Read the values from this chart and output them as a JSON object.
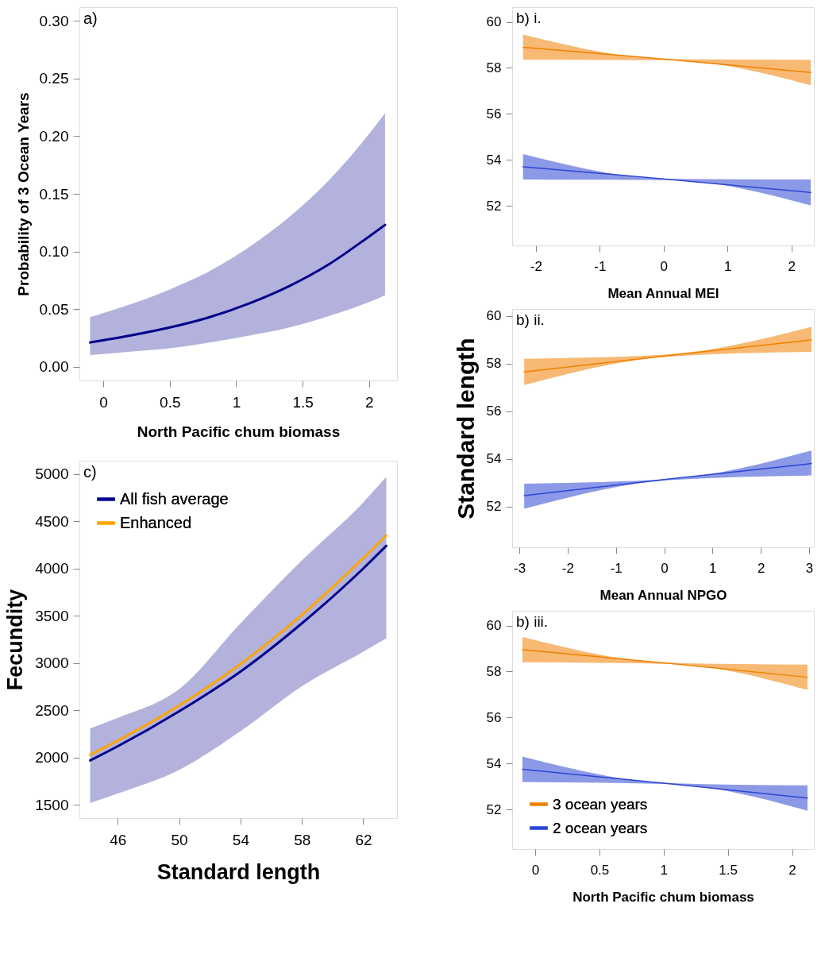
{
  "chart_data": [
    {
      "type": "line",
      "title": "a)",
      "xlabel": "North Pacific chum biomass",
      "ylabel": "Probability of 3 Ocean Years",
      "xlim": [
        -0.18,
        2.21
      ],
      "ylim": [
        -0.012,
        0.312
      ],
      "xticks": [
        0,
        0.5,
        1,
        1.5,
        2
      ],
      "yticks": [
        {
          "value": 0,
          "label": "0.00"
        },
        {
          "value": 0.05,
          "label": "0.05"
        },
        {
          "value": 0.1,
          "label": "0.10"
        },
        {
          "value": 0.15,
          "label": "0.15"
        },
        {
          "value": 0.2,
          "label": "0.20"
        },
        {
          "value": 0.25,
          "label": "0.25"
        },
        {
          "value": 0.3,
          "label": "0.30"
        }
      ],
      "grid": false,
      "legend": false,
      "series": [
        {
          "color": "#00008b",
          "x": [
            -0.1,
            0.2,
            0.5,
            0.8,
            1.1,
            1.4,
            1.7,
            2.0,
            2.12
          ],
          "values": [
            0.021,
            0.027,
            0.034,
            0.043,
            0.055,
            0.07,
            0.089,
            0.113,
            0.123
          ],
          "lower": [
            0.01,
            0.013,
            0.016,
            0.021,
            0.027,
            0.034,
            0.044,
            0.056,
            0.062
          ],
          "upper": [
            0.043,
            0.054,
            0.067,
            0.083,
            0.104,
            0.13,
            0.162,
            0.202,
            0.22
          ]
        }
      ]
    },
    {
      "type": "line",
      "title": "c)",
      "xlabel": "Standard length",
      "ylabel": "Fecundity",
      "xlim": [
        43.5,
        64.2
      ],
      "ylim": [
        1360,
        5140
      ],
      "xticks": [
        46,
        50,
        54,
        58,
        62
      ],
      "yticks": [
        1500,
        2000,
        2500,
        3000,
        3500,
        4000,
        4500,
        5000
      ],
      "grid": false,
      "legend": "top left",
      "series": [
        {
          "name": "All fish average",
          "color": "#00008b",
          "x": [
            44.2,
            46,
            50,
            54,
            58,
            62,
            63.5
          ],
          "values": [
            1970,
            2120,
            2490,
            2910,
            3420,
            4000,
            4240
          ],
          "lower": [
            1520,
            1620,
            1870,
            2280,
            2755,
            3120,
            3260
          ],
          "upper": [
            2310,
            2420,
            2725,
            3420,
            4085,
            4700,
            4970
          ]
        },
        {
          "name": "Enhanced",
          "color": "#ffa500",
          "x": [
            44.2,
            46,
            50,
            54,
            58,
            62,
            63.5
          ],
          "values": [
            2030,
            2180,
            2550,
            2990,
            3510,
            4110,
            4350
          ]
        }
      ]
    },
    {
      "type": "line",
      "title": "b) i.",
      "xlabel": "Mean Annual MEI",
      "xlim": [
        -2.37,
        2.35
      ],
      "ylim": [
        50.28,
        60.64
      ],
      "xticks": [
        -2,
        -1,
        0,
        1,
        2
      ],
      "yticks": [
        52,
        54,
        56,
        58,
        60
      ],
      "grid": false,
      "legend": false,
      "series": [
        {
          "color": "#f08000",
          "x": [
            -2.2,
            0.1,
            2.3
          ],
          "values": [
            58.9,
            58.36,
            57.8
          ],
          "lower": [
            58.35,
            58.33,
            57.25
          ],
          "upper": [
            59.45,
            58.38,
            58.35
          ]
        },
        {
          "color": "#2d46d2",
          "x": [
            -2.2,
            0.1,
            2.3
          ],
          "values": [
            53.7,
            53.15,
            52.58
          ],
          "lower": [
            53.15,
            53.12,
            52.02
          ],
          "upper": [
            54.25,
            53.17,
            53.15
          ]
        }
      ]
    },
    {
      "type": "line",
      "title": "b) ii.",
      "xlabel": "Mean Annual NPGO",
      "ylabel": "Standard length",
      "xlim": [
        -3.15,
        3.1
      ],
      "ylim": [
        50.28,
        60.3
      ],
      "xticks": [
        -3,
        -2,
        -1,
        0,
        1,
        2,
        3
      ],
      "yticks": [
        52,
        54,
        56,
        58,
        60
      ],
      "grid": false,
      "legend": false,
      "series": [
        {
          "color": "#f08000",
          "x": [
            -2.9,
            0.1,
            3.05
          ],
          "values": [
            57.65,
            58.35,
            59.0
          ],
          "lower": [
            57.1,
            58.3,
            58.5
          ],
          "upper": [
            58.2,
            58.4,
            59.55
          ]
        },
        {
          "color": "#2d46d2",
          "x": [
            -2.9,
            0.1,
            3.05
          ],
          "values": [
            52.45,
            53.15,
            53.8
          ],
          "lower": [
            51.9,
            53.1,
            53.3
          ],
          "upper": [
            52.95,
            53.15,
            54.35
          ]
        }
      ]
    },
    {
      "type": "line",
      "title": "b) iii.",
      "xlabel": "North Pacific chum biomass",
      "xlim": [
        -0.18,
        2.17
      ],
      "ylim": [
        50.28,
        60.64
      ],
      "xticks": [
        0,
        0.5,
        1,
        1.5,
        2
      ],
      "yticks": [
        52,
        54,
        56,
        58,
        60
      ],
      "grid": false,
      "legend": "bottom left",
      "series": [
        {
          "name": "3 ocean years",
          "color": "#f08000",
          "x": [
            -0.1,
            1.05,
            2.12
          ],
          "values": [
            58.95,
            58.35,
            57.75
          ],
          "lower": [
            58.4,
            58.33,
            57.2
          ],
          "upper": [
            59.5,
            58.38,
            58.3
          ]
        },
        {
          "name": "2 ocean years",
          "color": "#2d46d2",
          "x": [
            -0.1,
            1.05,
            2.12
          ],
          "values": [
            53.75,
            53.12,
            52.5
          ],
          "lower": [
            53.2,
            53.1,
            51.95
          ],
          "upper": [
            54.3,
            53.15,
            53.05
          ]
        }
      ]
    }
  ]
}
